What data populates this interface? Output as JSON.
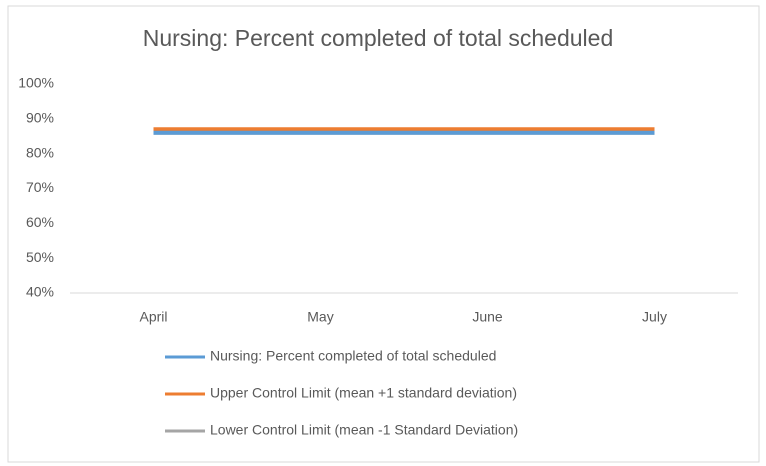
{
  "chart_data": {
    "type": "line",
    "title": "Nursing: Percent completed of total scheduled",
    "categories": [
      "April",
      "May",
      "June",
      "July"
    ],
    "series": [
      {
        "name": "Nursing: Percent completed of total scheduled",
        "color": "#5b9bd5",
        "values": [
          86,
          86,
          86,
          86
        ]
      },
      {
        "name": "Upper Control Limit (mean +1 standard deviation)",
        "color": "#ed7d31",
        "values": [
          87,
          87,
          87,
          87
        ]
      },
      {
        "name": "Lower Control Limit (mean -1 Standard Deviation)",
        "color": "#a5a5a5",
        "values": [
          86,
          86,
          86,
          86
        ]
      }
    ],
    "ylim": [
      40,
      100
    ],
    "yticks": [
      {
        "value": 40,
        "label": "40%"
      },
      {
        "value": 50,
        "label": "50%"
      },
      {
        "value": 60,
        "label": "60%"
      },
      {
        "value": 70,
        "label": "70%"
      },
      {
        "value": 80,
        "label": "80%"
      },
      {
        "value": 90,
        "label": "90%"
      },
      {
        "value": 100,
        "label": "100%"
      }
    ],
    "grid": false
  }
}
